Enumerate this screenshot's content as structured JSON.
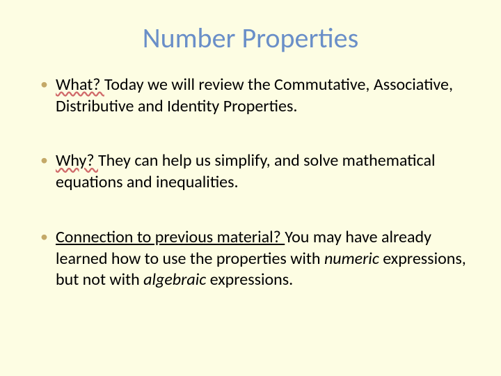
{
  "slide": {
    "background_color": "#fdfde3",
    "title": {
      "text": "Number Properties",
      "color": "#6a8fc8",
      "fontsize": 40,
      "align": "center",
      "weight": 400
    },
    "bullet_color": "#c4a968",
    "body_fontsize": 24,
    "body_color": "#000000",
    "bullets": [
      {
        "lead": "What? ",
        "rest": "Today we will review the Commutative, Associative, Distributive and Identity Properties."
      },
      {
        "lead": "Why? ",
        "rest": "They can help us simplify, and solve mathematical equations and inequalities."
      },
      {
        "lead": "Connection to previous material? ",
        "rest_pre": "You may have already learned how to use the properties with ",
        "italic1": "numeric",
        "rest_mid": " expressions, but not with ",
        "italic2": "algebraic",
        "rest_post": " expressions."
      }
    ]
  }
}
